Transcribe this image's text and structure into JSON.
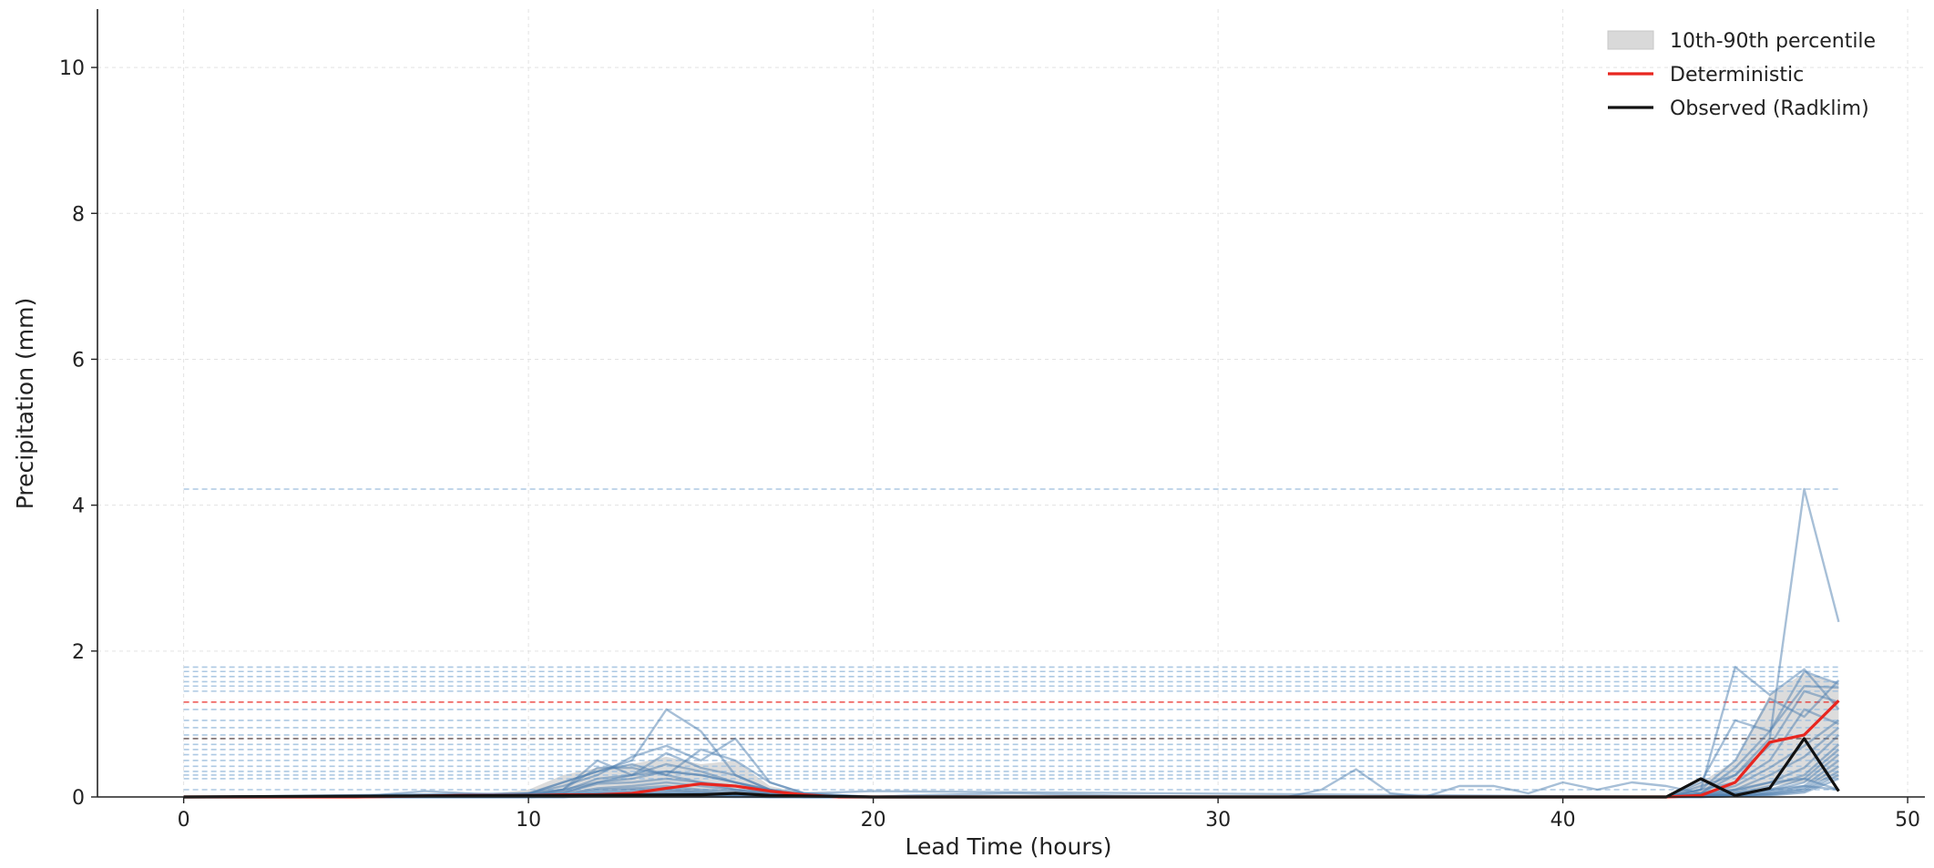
{
  "chart_data": {
    "type": "line",
    "title": "",
    "xlabel": "Lead Time (hours)",
    "ylabel": "Precipitation (mm)",
    "xlim": [
      -2.5,
      50.5
    ],
    "ylim": [
      0,
      10.8
    ],
    "xticks": [
      0,
      10,
      20,
      30,
      40,
      50
    ],
    "yticks": [
      0,
      2,
      4,
      6,
      8,
      10
    ],
    "grid": true,
    "legend_position": "top-right",
    "legend": [
      {
        "label": "10th-90th percentile",
        "kind": "band",
        "color": "#d9d9d9"
      },
      {
        "label": "Deterministic",
        "kind": "line",
        "color": "#e8261f"
      },
      {
        "label": "Observed (Radklim)",
        "kind": "line",
        "color": "#111111"
      }
    ],
    "colors": {
      "ensemble": "#4f7fb0",
      "ensemble_max": "#9fc0de",
      "band": "#d0d0d0",
      "deterministic": "#e8261f",
      "observed": "#111111",
      "observed_max_line": "#7a6a6a"
    },
    "percentile_band": {
      "x": [
        9,
        10,
        11,
        12,
        13,
        14,
        15,
        16,
        17,
        18,
        19,
        20,
        43,
        44,
        45,
        46,
        47,
        48
      ],
      "low": [
        0,
        0.02,
        0.05,
        0.1,
        0.1,
        0.08,
        0.05,
        0.03,
        0,
        0,
        0,
        0,
        0,
        0,
        0.05,
        0.15,
        0.2,
        0.25
      ],
      "high": [
        0.05,
        0.1,
        0.3,
        0.4,
        0.45,
        0.55,
        0.45,
        0.5,
        0.15,
        0.05,
        0.03,
        0,
        0,
        0.2,
        0.5,
        1.4,
        1.7,
        1.55
      ]
    },
    "deterministic": {
      "x": [
        0,
        5,
        8,
        10,
        11,
        12,
        13,
        14,
        15,
        16,
        17,
        18,
        19,
        20,
        40,
        43,
        44,
        45,
        46,
        47,
        48
      ],
      "y": [
        0,
        0,
        0.02,
        0.02,
        0.03,
        0.03,
        0.05,
        0.12,
        0.18,
        0.15,
        0.08,
        0.03,
        0,
        0,
        0,
        0,
        0.02,
        0.2,
        0.75,
        0.85,
        1.32
      ],
      "max": 1.3
    },
    "observed": {
      "x": [
        0,
        15,
        16,
        17,
        20,
        43,
        44,
        45,
        46,
        47,
        48
      ],
      "y": [
        0,
        0.03,
        0.05,
        0.02,
        0,
        0,
        0.25,
        0.02,
        0.12,
        0.8,
        0.08
      ],
      "max": 0.8
    },
    "ensemble_member_maxima": [
      4.22,
      1.78,
      1.72,
      1.65,
      1.58,
      1.52,
      1.45,
      1.2,
      1.05,
      0.95,
      0.85,
      0.72,
      0.65,
      0.58,
      0.5,
      0.42,
      0.35,
      0.3,
      0.25,
      0.1
    ],
    "ensemble": [
      {
        "x": [
          0,
          9,
          10,
          11,
          12,
          13,
          14,
          15,
          16,
          17,
          18,
          20,
          43,
          44,
          45,
          46,
          47,
          48
        ],
        "y": [
          0,
          0,
          0.05,
          0.2,
          0.35,
          0.5,
          1.2,
          0.9,
          0.3,
          0.1,
          0,
          0,
          0,
          0.05,
          0.3,
          0.8,
          4.22,
          2.4
        ]
      },
      {
        "x": [
          0,
          10,
          11,
          12,
          13,
          14,
          15,
          16,
          17,
          18,
          20,
          43,
          44,
          45,
          46,
          47,
          48
        ],
        "y": [
          0,
          0.03,
          0.1,
          0.4,
          0.4,
          0.3,
          0.2,
          0.1,
          0.05,
          0,
          0,
          0,
          0.1,
          1.78,
          1.4,
          1.75,
          1.2
        ]
      },
      {
        "x": [
          0,
          10,
          11,
          12,
          13,
          14,
          15,
          16,
          17,
          18,
          20,
          43,
          44,
          45,
          46,
          47,
          48
        ],
        "y": [
          0,
          0.05,
          0.15,
          0.3,
          0.55,
          0.7,
          0.5,
          0.8,
          0.2,
          0.05,
          0,
          0,
          0.2,
          1.05,
          0.9,
          1.72,
          1.55
        ]
      },
      {
        "x": [
          0,
          10,
          11,
          12,
          13,
          14,
          15,
          16,
          17,
          18,
          20,
          43,
          44,
          45,
          46,
          47,
          48
        ],
        "y": [
          0,
          0.02,
          0.1,
          0.5,
          0.3,
          0.6,
          0.4,
          0.3,
          0.1,
          0,
          0,
          0,
          0.1,
          0.5,
          1.35,
          1.1,
          1.6
        ]
      },
      {
        "x": [
          0,
          10,
          11,
          12,
          13,
          14,
          15,
          16,
          17,
          18,
          20,
          43,
          44,
          45,
          46,
          47,
          48
        ],
        "y": [
          0,
          0.04,
          0.2,
          0.35,
          0.45,
          0.3,
          0.65,
          0.5,
          0.2,
          0.05,
          0,
          0,
          0.05,
          0.4,
          0.9,
          1.52,
          1.5
        ]
      },
      {
        "x": [
          0,
          10,
          11,
          12,
          13,
          14,
          15,
          16,
          17,
          18,
          20,
          43,
          44,
          45,
          46,
          47,
          48
        ],
        "y": [
          0,
          0.02,
          0.08,
          0.25,
          0.3,
          0.45,
          0.35,
          0.2,
          0.1,
          0.02,
          0,
          0,
          0.15,
          0.3,
          0.7,
          1.45,
          1.3
        ]
      },
      {
        "x": [
          0,
          10,
          11,
          12,
          13,
          14,
          15,
          16,
          17,
          18,
          20,
          43,
          44,
          45,
          46,
          47,
          48
        ],
        "y": [
          0,
          0.02,
          0.05,
          0.2,
          0.25,
          0.35,
          0.3,
          0.2,
          0.08,
          0,
          0,
          0,
          0.1,
          0.2,
          0.5,
          1.2,
          1.0
        ]
      },
      {
        "x": [
          0,
          10,
          11,
          12,
          13,
          14,
          15,
          16,
          17,
          18,
          20,
          43,
          44,
          45,
          46,
          47,
          48
        ],
        "y": [
          0,
          0.02,
          0.06,
          0.18,
          0.2,
          0.25,
          0.2,
          0.15,
          0.05,
          0,
          0,
          0,
          0.05,
          0.15,
          0.4,
          0.7,
          1.05
        ]
      },
      {
        "x": [
          0,
          10,
          11,
          12,
          13,
          14,
          15,
          16,
          17,
          18,
          20,
          43,
          44,
          45,
          46,
          47,
          48
        ],
        "y": [
          0,
          0.01,
          0.04,
          0.12,
          0.15,
          0.2,
          0.15,
          0.1,
          0.04,
          0,
          0,
          0,
          0.03,
          0.1,
          0.3,
          0.55,
          0.95
        ]
      },
      {
        "x": [
          0,
          10,
          11,
          12,
          13,
          14,
          15,
          16,
          17,
          18,
          20,
          43,
          44,
          45,
          46,
          47,
          48
        ],
        "y": [
          0,
          0.01,
          0.03,
          0.1,
          0.12,
          0.15,
          0.1,
          0.08,
          0.03,
          0,
          0,
          0,
          0.02,
          0.08,
          0.2,
          0.4,
          0.85
        ]
      },
      {
        "x": [
          0,
          10,
          11,
          12,
          13,
          14,
          15,
          16,
          17,
          18,
          20,
          43,
          44,
          45,
          46,
          47,
          48
        ],
        "y": [
          0,
          0.01,
          0.02,
          0.08,
          0.1,
          0.12,
          0.08,
          0.05,
          0.02,
          0,
          0,
          0,
          0.02,
          0.05,
          0.15,
          0.3,
          0.72
        ]
      },
      {
        "x": [
          0,
          10,
          11,
          12,
          13,
          14,
          15,
          16,
          17,
          18,
          20,
          43,
          44,
          45,
          46,
          47,
          48
        ],
        "y": [
          0,
          0,
          0.02,
          0.06,
          0.08,
          0.1,
          0.06,
          0.04,
          0.02,
          0,
          0,
          0,
          0.01,
          0.04,
          0.1,
          0.25,
          0.65
        ]
      },
      {
        "x": [
          0,
          10,
          11,
          12,
          13,
          14,
          15,
          16,
          17,
          18,
          20,
          43,
          44,
          45,
          46,
          47,
          48
        ],
        "y": [
          0,
          0,
          0.01,
          0.05,
          0.06,
          0.08,
          0.05,
          0.03,
          0.01,
          0,
          0,
          0,
          0.01,
          0.03,
          0.08,
          0.2,
          0.58
        ]
      },
      {
        "x": [
          0,
          10,
          11,
          12,
          13,
          14,
          15,
          16,
          17,
          18,
          20,
          43,
          44,
          45,
          46,
          47,
          48
        ],
        "y": [
          0,
          0,
          0.01,
          0.04,
          0.05,
          0.06,
          0.04,
          0.02,
          0.01,
          0,
          0,
          0,
          0.01,
          0.02,
          0.06,
          0.15,
          0.5
        ]
      },
      {
        "x": [
          0,
          10,
          11,
          12,
          13,
          14,
          15,
          16,
          17,
          18,
          20,
          43,
          44,
          45,
          46,
          47,
          48
        ],
        "y": [
          0,
          0,
          0.01,
          0.03,
          0.04,
          0.05,
          0.03,
          0.02,
          0,
          0,
          0,
          0,
          0,
          0.02,
          0.05,
          0.12,
          0.42
        ]
      },
      {
        "x": [
          0,
          10,
          11,
          12,
          13,
          14,
          15,
          16,
          17,
          18,
          20,
          43,
          44,
          45,
          46,
          47,
          48
        ],
        "y": [
          0,
          0,
          0,
          0.02,
          0.03,
          0.04,
          0.02,
          0.01,
          0,
          0,
          0,
          0,
          0,
          0.01,
          0.04,
          0.1,
          0.35
        ]
      },
      {
        "x": [
          0,
          10,
          11,
          12,
          13,
          14,
          15,
          16,
          17,
          18,
          20,
          43,
          44,
          45,
          46,
          47,
          48
        ],
        "y": [
          0,
          0,
          0,
          0.02,
          0.02,
          0.03,
          0.02,
          0.01,
          0,
          0,
          0,
          0,
          0,
          0.01,
          0.03,
          0.08,
          0.3
        ]
      },
      {
        "x": [
          0,
          10,
          11,
          12,
          13,
          14,
          15,
          16,
          17,
          18,
          20,
          43,
          44,
          45,
          46,
          47,
          48
        ],
        "y": [
          0,
          0,
          0,
          0.01,
          0.02,
          0.02,
          0.01,
          0,
          0,
          0,
          0,
          0,
          0,
          0.01,
          0.02,
          0.06,
          0.25
        ]
      },
      {
        "x": [
          0,
          20,
          21,
          24,
          27,
          30,
          32,
          33,
          34,
          35,
          36,
          37,
          38,
          39,
          40,
          41,
          42,
          43,
          44,
          45,
          46,
          47,
          48
        ],
        "y": [
          0,
          0,
          0.02,
          0.05,
          0.02,
          0,
          0,
          0.1,
          0.38,
          0.05,
          0,
          0.15,
          0.15,
          0.05,
          0.2,
          0.1,
          0.2,
          0.15,
          0.05,
          0.1,
          0.2,
          0.25,
          0.1
        ]
      },
      {
        "x": [
          0,
          5,
          7,
          9,
          10,
          11,
          12,
          13,
          14,
          15,
          16,
          17,
          18,
          20,
          43,
          44,
          45,
          46,
          47,
          48
        ],
        "y": [
          0,
          0,
          0.08,
          0.03,
          0.05,
          0.1,
          0.2,
          0.3,
          0.35,
          0.3,
          0.2,
          0.1,
          0.05,
          0.08,
          0,
          0.02,
          0.05,
          0.1,
          0.15,
          0.1
        ]
      }
    ]
  }
}
